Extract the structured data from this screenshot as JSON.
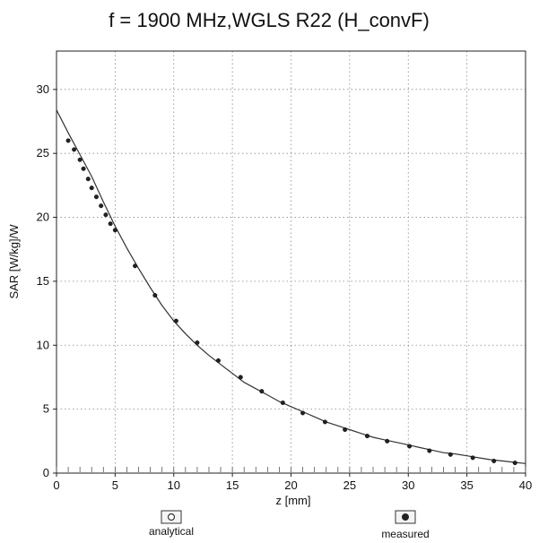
{
  "chart_data": {
    "type": "line",
    "title": "f = 1900 MHz,WGLS R22 (H_convF)",
    "xlabel": "z [mm]",
    "ylabel": "SAR [W/kg]/W",
    "xlim": [
      0,
      40
    ],
    "ylim": [
      0,
      33
    ],
    "xticks": [
      0,
      5,
      10,
      15,
      20,
      25,
      30,
      35,
      40
    ],
    "yticks": [
      0,
      5,
      10,
      15,
      20,
      25,
      30
    ],
    "grid": true,
    "legend": "bottom",
    "series": [
      {
        "name": "analytical",
        "style": "line",
        "color": "#333333",
        "x": [
          0,
          1,
          2,
          3,
          4,
          5,
          6,
          7,
          8,
          9,
          10,
          11,
          12,
          13,
          14,
          15,
          16,
          17,
          18,
          19,
          20,
          21,
          22,
          23,
          24,
          25,
          26,
          27,
          28,
          29,
          30,
          31,
          32,
          33,
          34,
          35,
          36,
          37,
          38,
          39,
          40
        ],
        "y": [
          28.4,
          26.6,
          24.9,
          23.2,
          21.2,
          19.3,
          17.6,
          16.0,
          14.5,
          13.1,
          11.9,
          10.9,
          10.0,
          9.2,
          8.5,
          7.8,
          7.1,
          6.6,
          6.1,
          5.6,
          5.2,
          4.8,
          4.4,
          4.0,
          3.7,
          3.4,
          3.1,
          2.8,
          2.6,
          2.4,
          2.2,
          2.0,
          1.8,
          1.6,
          1.5,
          1.35,
          1.2,
          1.05,
          0.95,
          0.85,
          0.75
        ]
      },
      {
        "name": "measured",
        "style": "markers",
        "color": "#222222",
        "x": [
          1.0,
          1.5,
          2.0,
          2.3,
          2.7,
          3.0,
          3.4,
          3.8,
          4.2,
          4.6,
          5.0,
          6.7,
          8.4,
          10.2,
          12.0,
          13.8,
          15.7,
          17.5,
          19.3,
          21.0,
          22.9,
          24.6,
          26.5,
          28.2,
          30.1,
          31.8,
          33.6,
          35.5,
          37.3,
          39.1
        ],
        "y": [
          26.0,
          25.3,
          24.5,
          23.8,
          23.0,
          22.3,
          21.6,
          20.9,
          20.2,
          19.5,
          19.0,
          16.2,
          13.9,
          11.9,
          10.2,
          8.8,
          7.5,
          6.4,
          5.5,
          4.7,
          4.0,
          3.4,
          2.9,
          2.5,
          2.1,
          1.75,
          1.45,
          1.2,
          0.95,
          0.8
        ]
      }
    ]
  },
  "legend": {
    "items": [
      {
        "label": "analytical",
        "icon": "open-circle-icon"
      },
      {
        "label": "measured",
        "icon": "filled-circle-icon"
      }
    ]
  }
}
